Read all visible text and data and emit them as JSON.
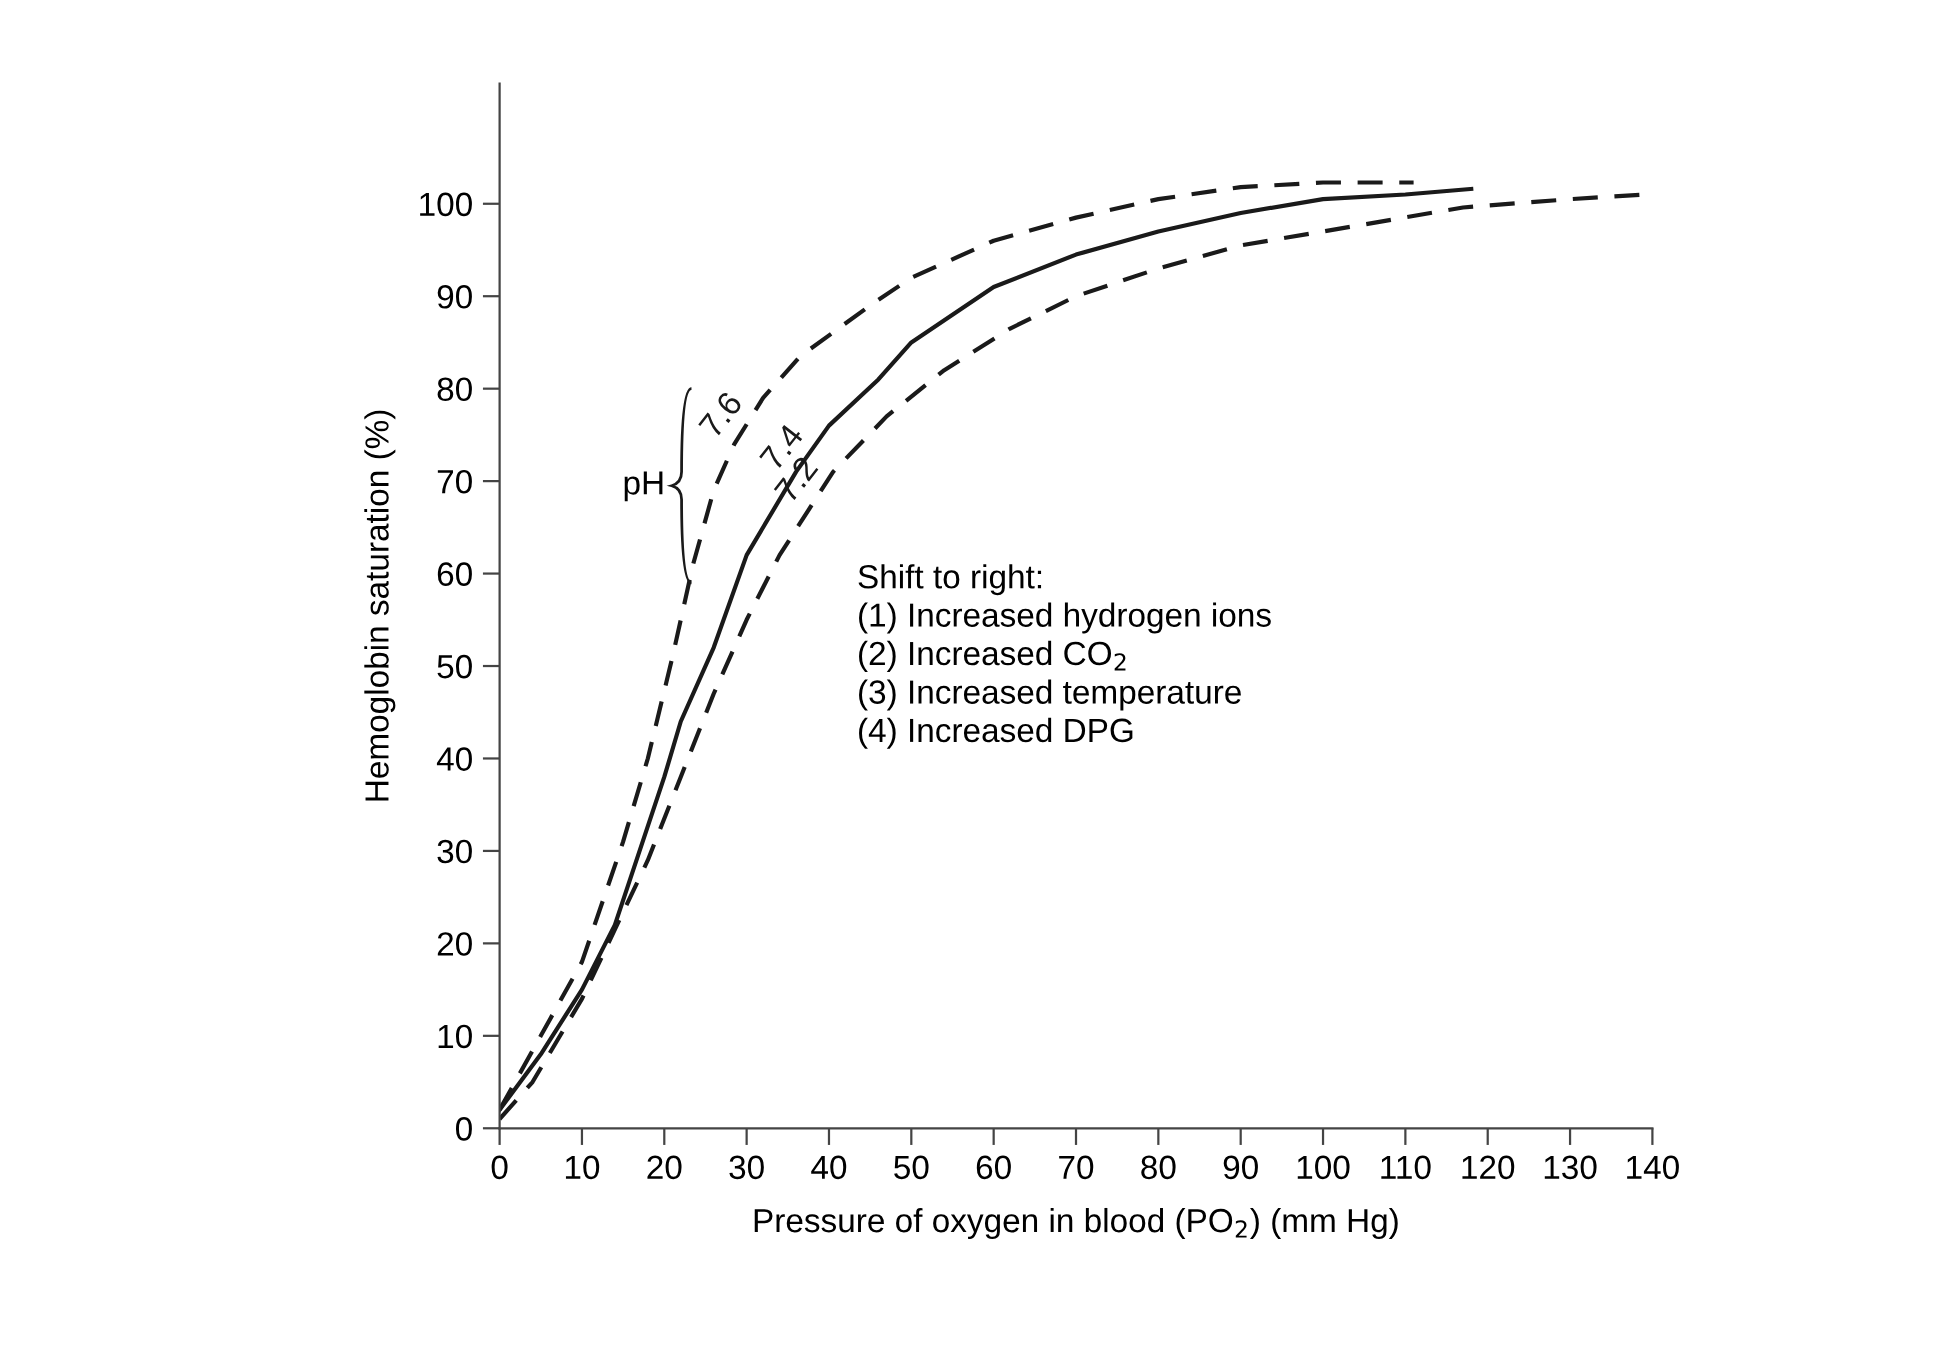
{
  "chart_data": {
    "type": "line",
    "xlabel": "Pressure of oxygen in blood (PO$_{2}$) (mm Hg)",
    "ylabel": "Hemoglobin saturation (%)",
    "xlim": [
      0,
      140
    ],
    "xticks": [
      0,
      10,
      20,
      30,
      40,
      50,
      60,
      70,
      80,
      90,
      100,
      110,
      120,
      130,
      140
    ],
    "ylim": [
      0,
      113
    ],
    "yticks": [
      0,
      10,
      20,
      30,
      40,
      50,
      60,
      70,
      80,
      90,
      100
    ],
    "grid": false,
    "legend": false,
    "marker": "none",
    "series": [
      {
        "name": "7.6",
        "color": "#1a1a1a",
        "line_style": "dashed",
        "x": [
          0,
          5,
          10,
          15,
          18,
          21,
          23.5,
          26,
          28.5,
          32,
          36.5,
          45,
          50,
          60,
          70,
          80,
          90,
          100,
          111
        ],
        "values": [
          2,
          10,
          18,
          31,
          40,
          51,
          61,
          69,
          74,
          79,
          83.5,
          89,
          92,
          96,
          98.5,
          100.5,
          101.8,
          102.3,
          102.3
        ]
      },
      {
        "name": "7.4",
        "color": "#1a1a1a",
        "line_style": "solid",
        "x": [
          0,
          5,
          10,
          14,
          20,
          22,
          26,
          30,
          36,
          40,
          46,
          50,
          60,
          70,
          80,
          90,
          100,
          110,
          118
        ],
        "values": [
          2,
          8,
          15,
          22,
          38,
          44,
          52,
          62,
          71,
          76,
          81,
          85,
          91,
          94.5,
          97,
          99,
          100.5,
          101,
          101.6
        ]
      },
      {
        "name": "7.2",
        "color": "#1a1a1a",
        "line_style": "dashed",
        "x": [
          0,
          4,
          10,
          18,
          22,
          26,
          30,
          34,
          40.5,
          47,
          54,
          62,
          70,
          80,
          90,
          100,
          117,
          130,
          139
        ],
        "values": [
          1,
          5,
          14,
          29,
          38,
          47,
          55,
          62,
          71,
          77,
          82,
          86.5,
          90,
          93,
          95.5,
          97,
          99.6,
          100.5,
          101
        ]
      }
    ],
    "annotations": [
      "pH",
      "Shift to right:\n(1) Increased hydrogen ions\n(2) Increased CO$_{2}$\n(3) Increased temperature\n(4) Increased DPG"
    ]
  }
}
